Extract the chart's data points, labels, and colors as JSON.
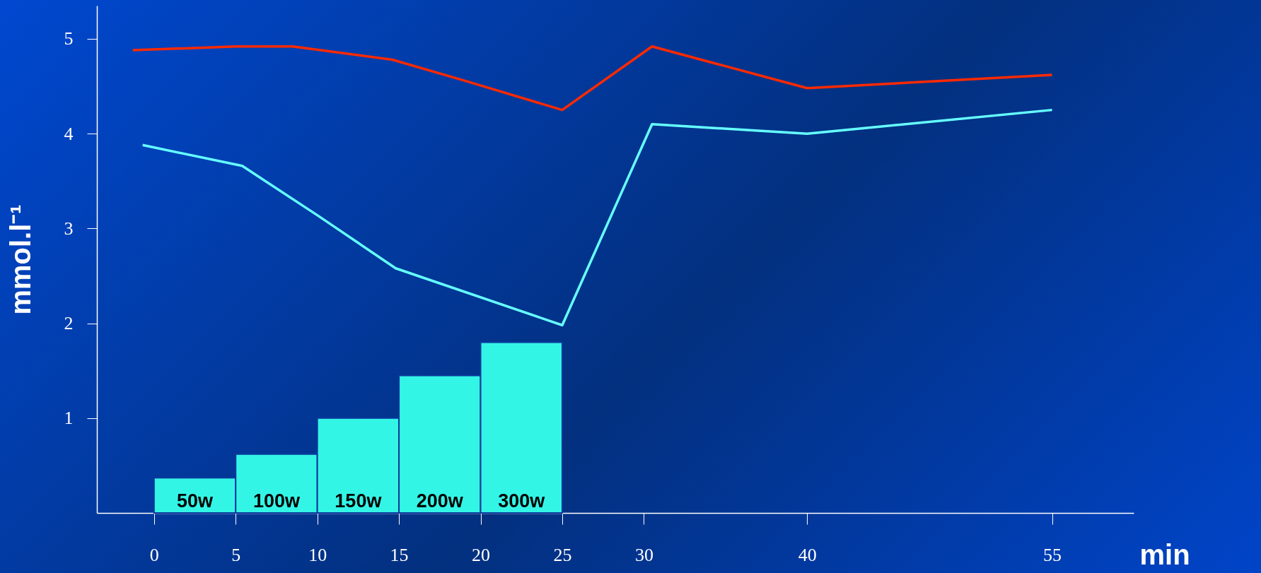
{
  "chart_data": {
    "type": "line",
    "xlabel": "min",
    "ylabel": "mmol.l⁻¹",
    "xlim": [
      -3.5,
      60
    ],
    "xticks": [
      0,
      5,
      10,
      15,
      20,
      25,
      30,
      40,
      55
    ],
    "ylim": [
      0,
      5.35
    ],
    "yticks": [
      1,
      2,
      3,
      4,
      5
    ],
    "grid": false,
    "annotations": [
      {
        "text": "50w",
        "x": 2.5,
        "y": 0
      },
      {
        "text": "100w",
        "x": 7.5,
        "y": 0
      },
      {
        "text": "150w",
        "x": 12.5,
        "y": 0
      },
      {
        "text": "200w",
        "x": 17.5,
        "y": 0
      },
      {
        "text": "300w",
        "x": 22.5,
        "y": 0
      }
    ],
    "series": [
      {
        "type": "bar",
        "color": "#33f5e6",
        "x": [
          2.5,
          7.5,
          12.5,
          17.5,
          22.5
        ],
        "values": [
          0.37,
          0.62,
          1.0,
          1.45,
          1.8
        ]
      },
      {
        "color": "#ff2a00",
        "x": [
          -1.3,
          5,
          8.5,
          14.6,
          19.2,
          25,
          30.5,
          40,
          55
        ],
        "values": [
          4.88,
          4.92,
          4.92,
          4.78,
          4.55,
          4.25,
          4.92,
          4.48,
          4.62
        ]
      },
      {
        "color": "#66ffff",
        "x": [
          -0.7,
          5.4,
          10,
          14.8,
          25,
          30.5,
          40,
          55
        ],
        "values": [
          3.88,
          3.66,
          3.14,
          2.58,
          1.98,
          4.1,
          4.0,
          4.25
        ]
      }
    ]
  }
}
